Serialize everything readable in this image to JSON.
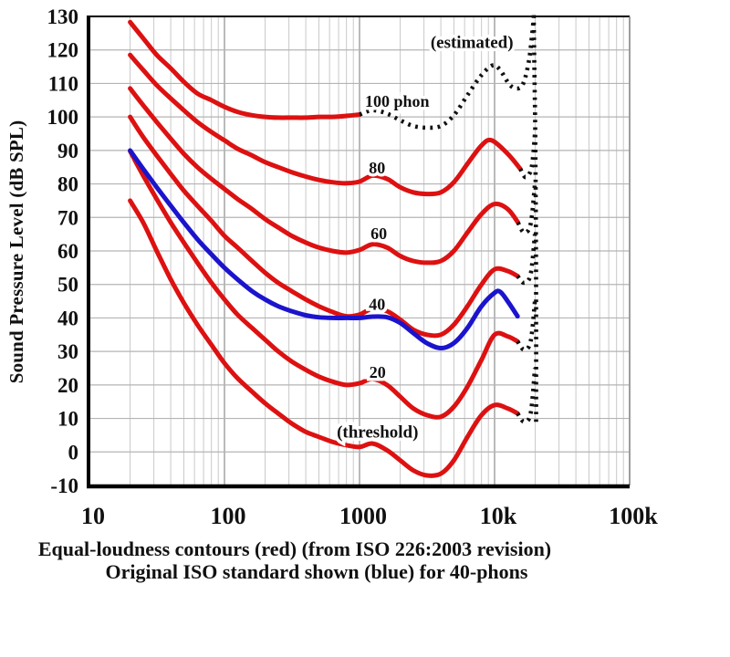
{
  "chart_data": {
    "type": "line",
    "title": "",
    "xlabel": "",
    "ylabel": "Sound Pressure Level (dB SPL)",
    "caption_line1": "Equal-loudness contours (red) (from ISO 226:2003 revision)",
    "caption_line2": "Original ISO standard shown (blue) for 40-phons",
    "x_scale": "log",
    "xlim": [
      10,
      100000
    ],
    "ylim": [
      -10,
      130
    ],
    "grid": "on",
    "colors": {
      "red": "#dd1111",
      "blue": "#1b14cc",
      "dotted": "#111111",
      "grid_minor": "#c9c9c9",
      "grid_major": "#a8a8a8",
      "axis": "#000000"
    },
    "x_ticks": [
      {
        "f": 10,
        "label": "10"
      },
      {
        "f": 100,
        "label": "100"
      },
      {
        "f": 1000,
        "label": "1000"
      },
      {
        "f": 10000,
        "label": "10k"
      },
      {
        "f": 100000,
        "label": "100k"
      }
    ],
    "y_ticks": [
      {
        "v": -10,
        "label": "-10"
      },
      {
        "v": 0,
        "label": "0"
      },
      {
        "v": 10,
        "label": "10"
      },
      {
        "v": 20,
        "label": "20"
      },
      {
        "v": 30,
        "label": "30"
      },
      {
        "v": 40,
        "label": "40"
      },
      {
        "v": 50,
        "label": "50"
      },
      {
        "v": 60,
        "label": "60"
      },
      {
        "v": 70,
        "label": "70"
      },
      {
        "v": 80,
        "label": "80"
      },
      {
        "v": 90,
        "label": "90"
      },
      {
        "v": 100,
        "label": "100"
      },
      {
        "v": 110,
        "label": "110"
      },
      {
        "v": 120,
        "label": "120"
      },
      {
        "v": 130,
        "label": "130"
      }
    ],
    "annotations": [
      {
        "text": "(estimated)",
        "f": 6800,
        "db": 122.4,
        "size": 19
      },
      {
        "text": "100 phon",
        "f": 1900,
        "db": 104.8,
        "size": 18
      },
      {
        "text": "80",
        "f": 1350,
        "db": 84.8,
        "size": 18
      },
      {
        "text": "60",
        "f": 1390,
        "db": 65.2,
        "size": 18
      },
      {
        "text": "40",
        "f": 1350,
        "db": 44.2,
        "size": 18
      },
      {
        "text": "20",
        "f": 1360,
        "db": 23.8,
        "size": 18
      },
      {
        "text": "(threshold)",
        "f": 1360,
        "db": 6.1,
        "size": 19
      }
    ],
    "series": [
      {
        "id": "threshold",
        "name": "hearing threshold (ISO 226:2003)",
        "color": "#dd1111",
        "style": "solid",
        "width": 5,
        "points": [
          [
            20,
            75
          ],
          [
            25,
            68.5
          ],
          [
            31.5,
            60
          ],
          [
            40,
            51.5
          ],
          [
            50,
            44.5
          ],
          [
            63,
            38
          ],
          [
            80,
            32
          ],
          [
            100,
            26.5
          ],
          [
            125,
            22
          ],
          [
            160,
            18
          ],
          [
            200,
            14.5
          ],
          [
            250,
            11.5
          ],
          [
            315,
            8.5
          ],
          [
            400,
            6
          ],
          [
            500,
            4.5
          ],
          [
            630,
            3
          ],
          [
            800,
            2
          ],
          [
            1000,
            1.5
          ],
          [
            1250,
            2.5
          ],
          [
            1600,
            0.5
          ],
          [
            2000,
            -2.5
          ],
          [
            2500,
            -5.5
          ],
          [
            3150,
            -7
          ],
          [
            4000,
            -6.5
          ],
          [
            5000,
            -2.5
          ],
          [
            6300,
            4.5
          ],
          [
            8000,
            11
          ],
          [
            10000,
            14
          ],
          [
            12500,
            13
          ],
          [
            14800,
            11.5
          ]
        ]
      },
      {
        "id": "contour-20-phon",
        "name": "20 phon (ISO 226:2003)",
        "color": "#dd1111",
        "style": "solid",
        "width": 5,
        "points": [
          [
            20,
            89.8
          ],
          [
            25,
            82.5
          ],
          [
            31.5,
            75.5
          ],
          [
            40,
            68.5
          ],
          [
            50,
            62.5
          ],
          [
            63,
            56.5
          ],
          [
            80,
            50.5
          ],
          [
            100,
            45.5
          ],
          [
            125,
            41
          ],
          [
            160,
            37
          ],
          [
            200,
            33.5
          ],
          [
            250,
            30
          ],
          [
            315,
            27
          ],
          [
            400,
            24.5
          ],
          [
            500,
            22.5
          ],
          [
            630,
            21
          ],
          [
            800,
            20
          ],
          [
            1000,
            20.5
          ],
          [
            1250,
            21.8
          ],
          [
            1600,
            20
          ],
          [
            2000,
            16.5
          ],
          [
            2500,
            13
          ],
          [
            3150,
            11
          ],
          [
            4000,
            10.5
          ],
          [
            5000,
            13.5
          ],
          [
            6300,
            19.5
          ],
          [
            8000,
            27.5
          ],
          [
            10000,
            35
          ],
          [
            12500,
            34.5
          ],
          [
            14800,
            33
          ]
        ]
      },
      {
        "id": "contour-40-phon",
        "name": "40 phon (ISO 226:2003)",
        "color": "#dd1111",
        "style": "solid",
        "width": 5,
        "points": [
          [
            20,
            100
          ],
          [
            25,
            94
          ],
          [
            31.5,
            88.5
          ],
          [
            40,
            83
          ],
          [
            50,
            78
          ],
          [
            63,
            73.5
          ],
          [
            80,
            69
          ],
          [
            100,
            64.5
          ],
          [
            125,
            61
          ],
          [
            160,
            57
          ],
          [
            200,
            53.5
          ],
          [
            250,
            50.5
          ],
          [
            315,
            48
          ],
          [
            400,
            45.5
          ],
          [
            500,
            43.5
          ],
          [
            630,
            41.8
          ],
          [
            800,
            40.5
          ],
          [
            1000,
            41
          ],
          [
            1250,
            42.8
          ],
          [
            1600,
            42
          ],
          [
            2000,
            39.5
          ],
          [
            2500,
            36.5
          ],
          [
            3150,
            35
          ],
          [
            4000,
            35
          ],
          [
            5000,
            38
          ],
          [
            6300,
            43.5
          ],
          [
            8000,
            50
          ],
          [
            10000,
            54.5
          ],
          [
            12500,
            54
          ],
          [
            14800,
            52.5
          ]
        ]
      },
      {
        "id": "contour-60-phon",
        "name": "60 phon (ISO 226:2003)",
        "color": "#dd1111",
        "style": "solid",
        "width": 5,
        "points": [
          [
            20,
            108.5
          ],
          [
            25,
            103.5
          ],
          [
            31.5,
            98.5
          ],
          [
            40,
            93.5
          ],
          [
            50,
            89
          ],
          [
            63,
            85
          ],
          [
            80,
            81.5
          ],
          [
            100,
            78.5
          ],
          [
            125,
            75.5
          ],
          [
            160,
            72.5
          ],
          [
            200,
            69.5
          ],
          [
            250,
            67
          ],
          [
            315,
            64.5
          ],
          [
            400,
            62.5
          ],
          [
            500,
            61
          ],
          [
            630,
            60
          ],
          [
            800,
            59.5
          ],
          [
            1000,
            60.3
          ],
          [
            1250,
            62
          ],
          [
            1600,
            61
          ],
          [
            2000,
            58.5
          ],
          [
            2500,
            57
          ],
          [
            3150,
            56.5
          ],
          [
            4000,
            57
          ],
          [
            5000,
            60
          ],
          [
            6300,
            65.5
          ],
          [
            8000,
            71
          ],
          [
            10000,
            74
          ],
          [
            12500,
            72.5
          ],
          [
            14900,
            68.5
          ]
        ]
      },
      {
        "id": "contour-80-phon",
        "name": "80 phon (ISO 226:2003)",
        "color": "#dd1111",
        "style": "solid",
        "width": 5,
        "points": [
          [
            20,
            118.5
          ],
          [
            25,
            114
          ],
          [
            31.5,
            109.5
          ],
          [
            40,
            105.5
          ],
          [
            50,
            102
          ],
          [
            63,
            98.5
          ],
          [
            80,
            95.5
          ],
          [
            100,
            93
          ],
          [
            125,
            90.5
          ],
          [
            160,
            88.5
          ],
          [
            200,
            86.5
          ],
          [
            250,
            85
          ],
          [
            315,
            83.5
          ],
          [
            400,
            82.2
          ],
          [
            500,
            81.2
          ],
          [
            630,
            80.5
          ],
          [
            800,
            80.2
          ],
          [
            1000,
            80.7
          ],
          [
            1250,
            82.5
          ],
          [
            1600,
            81.5
          ],
          [
            2000,
            79
          ],
          [
            2500,
            77.5
          ],
          [
            3150,
            77
          ],
          [
            4000,
            77.5
          ],
          [
            5000,
            80.5
          ],
          [
            6300,
            86
          ],
          [
            8000,
            91.5
          ],
          [
            9500,
            93
          ],
          [
            12500,
            89
          ],
          [
            15500,
            84.5
          ]
        ]
      },
      {
        "id": "contour-100-phon",
        "name": "100 phon (ISO 226:2003)",
        "color": "#dd1111",
        "style": "solid",
        "width": 5,
        "points": [
          [
            20,
            128.3
          ],
          [
            25,
            123.5
          ],
          [
            31.5,
            118.5
          ],
          [
            40,
            114.5
          ],
          [
            50,
            110.5
          ],
          [
            63,
            107
          ],
          [
            80,
            105
          ],
          [
            100,
            103
          ],
          [
            125,
            101.5
          ],
          [
            160,
            100.5
          ],
          [
            200,
            100
          ],
          [
            250,
            99.8
          ],
          [
            315,
            99.8
          ],
          [
            400,
            99.8
          ],
          [
            500,
            100
          ],
          [
            630,
            100
          ],
          [
            800,
            100.3
          ],
          [
            1000,
            100.7
          ]
        ]
      },
      {
        "id": "original-iso-40-phon",
        "name": "40 phon (original ISO standard)",
        "color": "#1b14cc",
        "style": "solid",
        "width": 5,
        "points": [
          [
            20,
            90
          ],
          [
            25,
            84.5
          ],
          [
            31.5,
            79
          ],
          [
            40,
            73.5
          ],
          [
            50,
            68.5
          ],
          [
            63,
            63.5
          ],
          [
            80,
            59
          ],
          [
            100,
            55
          ],
          [
            125,
            51.5
          ],
          [
            160,
            48
          ],
          [
            200,
            45.5
          ],
          [
            250,
            43.5
          ],
          [
            315,
            42
          ],
          [
            400,
            40.8
          ],
          [
            500,
            40.2
          ],
          [
            630,
            40
          ],
          [
            800,
            40
          ],
          [
            1000,
            40
          ],
          [
            1250,
            40.4
          ],
          [
            1600,
            40.2
          ],
          [
            2000,
            38.5
          ],
          [
            2500,
            35.5
          ],
          [
            3150,
            32.5
          ],
          [
            4000,
            31
          ],
          [
            5000,
            32.5
          ],
          [
            6300,
            37
          ],
          [
            8000,
            43.5
          ],
          [
            10000,
            47.5
          ],
          [
            11000,
            47.8
          ],
          [
            12500,
            45
          ],
          [
            14800,
            40.5
          ]
        ]
      },
      {
        "id": "estimated-100-phon",
        "name": "100 phon estimated portion",
        "color": "#111111",
        "style": "dotted",
        "width": 4.6,
        "points": [
          [
            1000,
            100.7
          ],
          [
            1250,
            102
          ],
          [
            1600,
            101
          ],
          [
            2000,
            99
          ],
          [
            2500,
            97.3
          ],
          [
            3150,
            96.8
          ],
          [
            4000,
            97.3
          ],
          [
            5000,
            100.5
          ],
          [
            6300,
            106.5
          ],
          [
            8000,
            112.5
          ],
          [
            9700,
            115.4
          ],
          [
            11000,
            114
          ],
          [
            13000,
            109.5
          ],
          [
            15000,
            108.5
          ],
          [
            16500,
            110.5
          ],
          [
            18000,
            117
          ],
          [
            19000,
            125
          ],
          [
            19600,
            131
          ]
        ]
      },
      {
        "id": "estimated-ext-80",
        "name": "80 phon estimated extension",
        "color": "#111111",
        "style": "dotted",
        "width": 4.6,
        "points": [
          [
            15500,
            84.5
          ],
          [
            17000,
            82
          ],
          [
            18800,
            85
          ],
          [
            19900,
            95
          ]
        ]
      },
      {
        "id": "estimated-ext-60",
        "name": "60 phon estimated extension",
        "color": "#111111",
        "style": "dotted",
        "width": 4.6,
        "points": [
          [
            14900,
            68.5
          ],
          [
            16500,
            65.5
          ],
          [
            18500,
            68
          ],
          [
            19900,
            80
          ]
        ]
      },
      {
        "id": "estimated-ext-40",
        "name": "40 phon estimated extension",
        "color": "#111111",
        "style": "dotted",
        "width": 4.6,
        "points": [
          [
            14800,
            52.5
          ],
          [
            16500,
            50.5
          ],
          [
            18500,
            53
          ],
          [
            19900,
            65
          ]
        ]
      },
      {
        "id": "estimated-ext-20",
        "name": "20 phon estimated extension",
        "color": "#111111",
        "style": "dotted",
        "width": 4.6,
        "points": [
          [
            14800,
            33
          ],
          [
            16500,
            30.5
          ],
          [
            18500,
            33
          ],
          [
            19900,
            45
          ]
        ]
      },
      {
        "id": "estimated-ext-threshold",
        "name": "threshold estimated extension",
        "color": "#111111",
        "style": "dotted",
        "width": 4.6,
        "points": [
          [
            14800,
            11.5
          ],
          [
            16500,
            9
          ],
          [
            18500,
            11.5
          ],
          [
            19900,
            25
          ]
        ]
      },
      {
        "id": "estimated-hf-limit",
        "name": "estimated high-frequency limit near 20 kHz",
        "color": "#111111",
        "style": "dotted",
        "width": 4.6,
        "points": [
          [
            20300,
            9
          ],
          [
            20300,
            40
          ],
          [
            20200,
            70
          ],
          [
            20000,
            95
          ],
          [
            19700,
            115
          ],
          [
            19500,
            130.5
          ]
        ]
      }
    ]
  }
}
